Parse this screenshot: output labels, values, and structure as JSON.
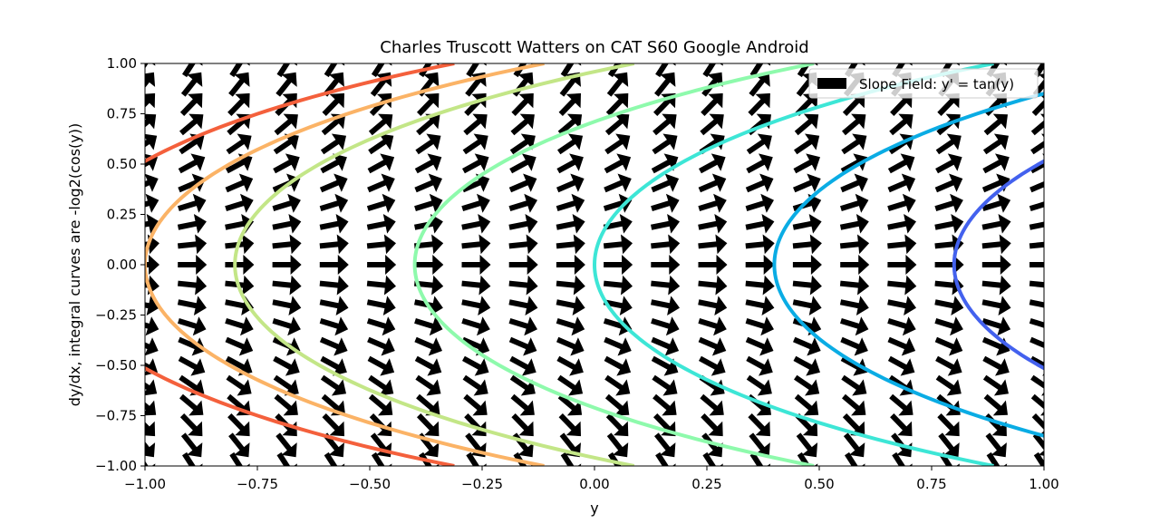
{
  "chart_data": {
    "type": "quiver",
    "title": "Charles Truscott Watters on CAT S60 Google Android",
    "xlabel": "y",
    "ylabel": "dy/dx, integral curves are -log2(cos(y))",
    "xlim": [
      -1.0,
      1.0
    ],
    "ylim": [
      -1.0,
      1.0
    ],
    "x_ticks": [
      "−1.00",
      "−0.75",
      "−0.50",
      "−0.25",
      "0.00",
      "0.25",
      "0.50",
      "0.75",
      "1.00"
    ],
    "y_ticks": [
      "1.00",
      "0.75",
      "0.50",
      "0.25",
      "0.00",
      "−0.25",
      "−0.50",
      "−0.75",
      "−1.00"
    ],
    "grid": false,
    "legend": {
      "placement": "top-right",
      "entries": [
        {
          "label": "Slope Field: y' = tan(y)",
          "color": "#000000"
        }
      ]
    },
    "slope_field": {
      "function": "tan(y)",
      "grid_columns": 20,
      "grid_rows": 21,
      "color": "#000000"
    },
    "integral_curves": [
      {
        "vertex_x": -1.2,
        "color": "#f4603c"
      },
      {
        "vertex_x": -1.0,
        "color": "#fbb366"
      },
      {
        "vertex_x": -0.8,
        "color": "#c3e687"
      },
      {
        "vertex_x": -0.4,
        "color": "#8efaac"
      },
      {
        "vertex_x": 0.0,
        "color": "#3de6d6"
      },
      {
        "vertex_x": 0.4,
        "color": "#0aace4"
      },
      {
        "vertex_x": 0.8,
        "color": "#4361ee"
      }
    ]
  }
}
